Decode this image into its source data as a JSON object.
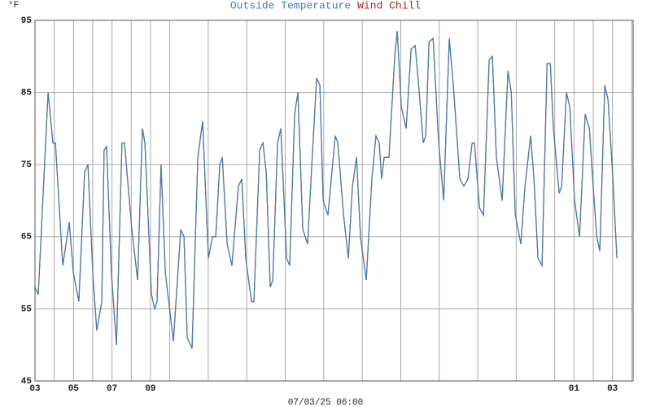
{
  "chart_data": {
    "type": "line",
    "title_parts": [
      "Outside Temperature",
      "Wind Chill"
    ],
    "y_unit": "°F",
    "x_label": "07/03/25 06:00",
    "xlim": [
      0,
      31.07
    ],
    "xticks": [
      {
        "value": 0,
        "label": "03"
      },
      {
        "value": 2,
        "label": "05"
      },
      {
        "value": 4,
        "label": "07"
      },
      {
        "value": 6,
        "label": "09"
      },
      8,
      10,
      12,
      14,
      16,
      18,
      20,
      22,
      24,
      26,
      28,
      {
        "value": 28,
        "label": "01"
      },
      {
        "value": 30,
        "label": "03"
      }
    ],
    "minor_xticks": [
      1,
      3,
      5,
      7,
      9,
      11,
      13,
      15,
      17,
      19,
      21,
      23,
      25,
      27,
      29,
      31
    ],
    "ylim": [
      45,
      95
    ],
    "yticks": [
      45,
      55,
      65,
      75,
      85,
      95
    ],
    "grid": true,
    "x": [
      0,
      0.17,
      0.68,
      0.93,
      1.06,
      1.44,
      1.78,
      1.99,
      2.28,
      2.58,
      2.75,
      3.0,
      3.21,
      3.47,
      3.59,
      3.72,
      3.97,
      4.23,
      4.52,
      4.65,
      5.03,
      5.33,
      5.58,
      5.71,
      6.05,
      6.22,
      6.34,
      6.55,
      6.77,
      7.19,
      7.57,
      7.74,
      7.91,
      8.16,
      8.46,
      8.71,
      9.01,
      9.22,
      9.39,
      9.6,
      9.73,
      9.98,
      10.23,
      10.57,
      10.74,
      10.95,
      11.25,
      11.37,
      11.67,
      11.84,
      12.01,
      12.22,
      12.35,
      12.6,
      12.77,
      13.07,
      13.23,
      13.49,
      13.66,
      13.91,
      14.16,
      14.38,
      14.63,
      14.8,
      14.97,
      15.22,
      15.6,
      15.73,
      16.03,
      16.28,
      16.49,
      16.7,
      16.91,
      17.21,
      17.5,
      17.71,
      17.88,
      18.01,
      18.14,
      18.39,
      18.69,
      18.82,
      19.03,
      19.28,
      19.54,
      19.75,
      19.96,
      20.17,
      20.3,
      20.47,
      20.68,
      20.97,
      21.23,
      21.52,
      21.73,
      21.94,
      22.07,
      22.28,
      22.49,
      22.71,
      22.83,
      23.09,
      23.3,
      23.59,
      23.76,
      23.97,
      24.27,
      24.57,
      24.74,
      24.95,
      25.24,
      25.45,
      25.75,
      25.92,
      26.13,
      26.34,
      26.6,
      26.77,
      26.93,
      27.23,
      27.36,
      27.61,
      27.78,
      28.03,
      28.29,
      28.58,
      28.8,
      28.92,
      29.18,
      29.34,
      29.6,
      29.77,
      30.02,
      30.23
    ],
    "series": [
      {
        "name": "Wind Chill",
        "color": "#b22222",
        "values": [
          58,
          57,
          85,
          78,
          78,
          61,
          67,
          60,
          56,
          74,
          75,
          60,
          52,
          56,
          77,
          77.5,
          60,
          50,
          78,
          78,
          66,
          59,
          80,
          78,
          57,
          55,
          56,
          75,
          60,
          50.5,
          66,
          65,
          51,
          49.5,
          76,
          81,
          62,
          65,
          65,
          75,
          76,
          64,
          61,
          72,
          73,
          62,
          56,
          56,
          77,
          78,
          74,
          58,
          59,
          78,
          80,
          62,
          61,
          82,
          85,
          66,
          64,
          75,
          87,
          86,
          70,
          68,
          79,
          78,
          68,
          62,
          72,
          76,
          65,
          59,
          73,
          79,
          78,
          73,
          76,
          76,
          90,
          93.5,
          83,
          80,
          91,
          91.5,
          85,
          78,
          79,
          92,
          92.5,
          78,
          70,
          92.5,
          86,
          78,
          73,
          72,
          73,
          78,
          78,
          69,
          68,
          89.5,
          90,
          76,
          70,
          88,
          85,
          68,
          64,
          72,
          79,
          73,
          62,
          61,
          89,
          89,
          80,
          71,
          72,
          85,
          83,
          70,
          65,
          82,
          80,
          75,
          65,
          63,
          86,
          84,
          73,
          62
        ]
      },
      {
        "name": "Outside Temperature",
        "color": "#4282b4",
        "values": [
          58,
          57,
          85,
          78,
          78,
          61,
          67,
          60,
          56,
          74,
          75,
          60,
          52,
          56,
          77,
          77.5,
          60,
          50,
          78,
          78,
          66,
          59,
          80,
          78,
          57,
          55,
          56,
          75,
          60,
          50.5,
          66,
          65,
          51,
          49.5,
          76,
          81,
          62,
          65,
          65,
          75,
          76,
          64,
          61,
          72,
          73,
          62,
          56,
          56,
          77,
          78,
          74,
          58,
          59,
          78,
          80,
          62,
          61,
          82,
          85,
          66,
          64,
          75,
          87,
          86,
          70,
          68,
          79,
          78,
          68,
          62,
          72,
          76,
          65,
          59,
          73,
          79,
          78,
          73,
          76,
          76,
          90,
          93.5,
          83,
          80,
          91,
          91.5,
          85,
          78,
          79,
          92,
          92.5,
          78,
          70,
          92.5,
          86,
          78,
          73,
          72,
          73,
          78,
          78,
          69,
          68,
          89.5,
          90,
          76,
          70,
          88,
          85,
          68,
          64,
          72,
          79,
          73,
          62,
          61,
          89,
          89,
          80,
          71,
          72,
          85,
          83,
          70,
          65,
          82,
          80,
          75,
          65,
          63,
          86,
          84,
          73,
          62
        ]
      }
    ]
  }
}
